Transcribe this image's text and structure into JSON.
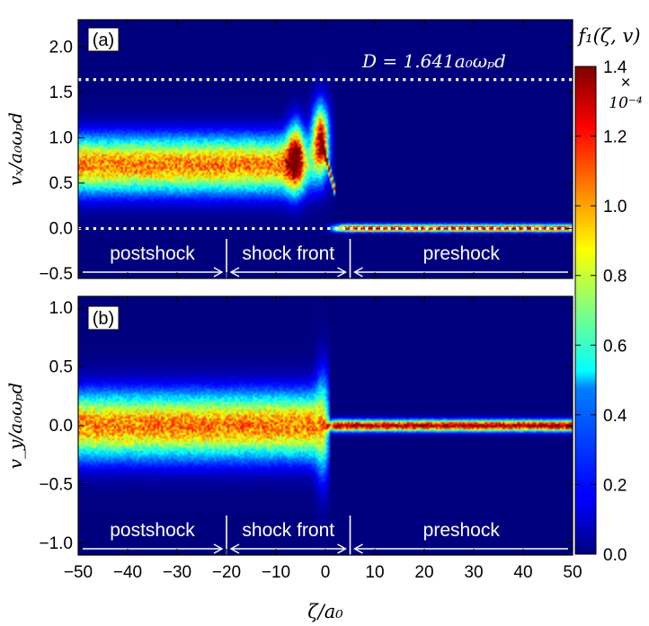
{
  "chart_data": {
    "type": "heatmap",
    "colorbar": {
      "title": "f₁(ζ, v)",
      "multiplier": "×",
      "multiplier_exp": "10⁻⁴",
      "range": [
        0.0,
        1.4
      ],
      "ticks": [
        "0.0",
        "0.2",
        "0.4",
        "0.6",
        "0.8",
        "1.0",
        "1.2",
        "1.4"
      ],
      "colormap": "jet"
    },
    "xaxis": {
      "label": "ζ/a₀",
      "range": [
        -50,
        50
      ],
      "ticks": [
        -50,
        -40,
        -30,
        -20,
        -10,
        0,
        10,
        20,
        30,
        40,
        50
      ],
      "tick_labels": [
        "−50",
        "−40",
        "−30",
        "−20",
        "−10",
        "0",
        "10",
        "20",
        "30",
        "40",
        "50"
      ]
    },
    "regions": {
      "boundaries": [
        -20,
        5
      ],
      "labels": [
        "postshock",
        "shock front",
        "preshock"
      ]
    },
    "panels": [
      {
        "label": "(a)",
        "ylabel": "vₓ/a₀ωₚd",
        "ylim": [
          -0.55,
          2.3
        ],
        "ticks": [
          -0.5,
          0.0,
          0.5,
          1.0,
          1.5,
          2.0
        ],
        "tick_labels": [
          "−0.5",
          "0.0",
          "0.5",
          "1.0",
          "1.5",
          "2.0"
        ],
        "dotted_lines": [
          1.641,
          0.0
        ],
        "annotation": "D = 1.641a₀ωₚd",
        "postshock_center": 0.7,
        "postshock_width": 0.3,
        "peaks": [
          {
            "x": -6,
            "v": 0.8,
            "amp": 1.0
          },
          {
            "x": -1,
            "v": 1.0,
            "amp": 1.25
          }
        ]
      },
      {
        "label": "(b)",
        "ylabel": "v_y/a₀ωₚd",
        "ylim": [
          -1.1,
          1.1
        ],
        "ticks": [
          -1.0,
          -0.5,
          0.0,
          0.5,
          1.0
        ],
        "tick_labels": [
          "−1.0",
          "−0.5",
          "0.0",
          "0.5",
          "1.0"
        ],
        "postshock_center": 0.0,
        "postshock_width": 0.27
      }
    ]
  }
}
